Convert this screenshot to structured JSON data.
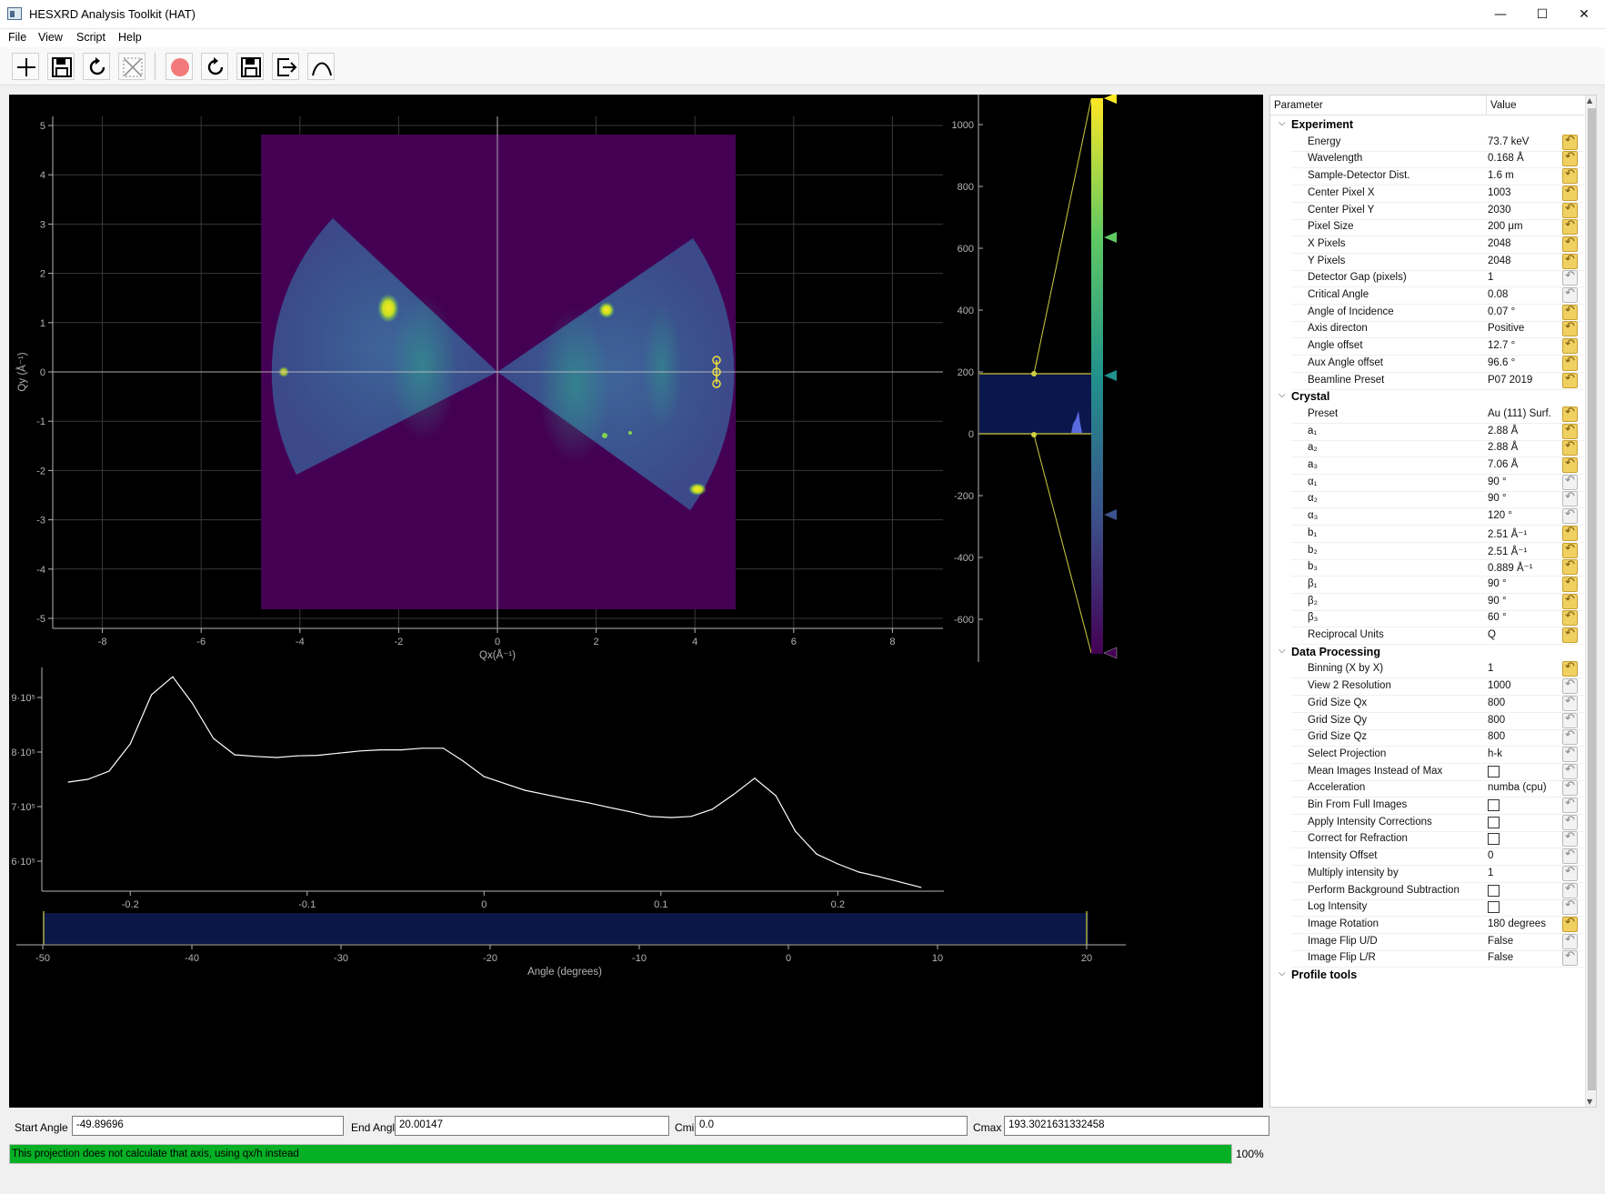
{
  "window": {
    "title": "HESXRD Analysis Toolkit (HAT)"
  },
  "menu": [
    {
      "label": "File"
    },
    {
      "label": "View"
    },
    {
      "label": "Script"
    },
    {
      "label": "Help"
    }
  ],
  "toolbar": {
    "left": [
      "add-icon",
      "save-icon",
      "refresh-icon",
      "close-icon"
    ],
    "right": [
      "record-icon",
      "refresh-icon",
      "save-icon",
      "export-icon",
      "curve-icon"
    ]
  },
  "colors": {
    "colormap": [
      "#440154",
      "#3b528b",
      "#21918c",
      "#5ec962",
      "#fde725"
    ],
    "progress": "#06b025",
    "background_region": "#440154"
  },
  "map_plot": {
    "x_label": "Qx(Å⁻¹)",
    "y_label": "Qy (Å⁻¹)",
    "x_ticks": [
      "-8",
      "-6",
      "-4",
      "-2",
      "0",
      "2",
      "4",
      "6",
      "8"
    ],
    "y_ticks": [
      "5",
      "4",
      "3",
      "2",
      "1",
      "0",
      "-1",
      "-2",
      "-3",
      "-4",
      "-5"
    ]
  },
  "histogram": {
    "ticks": [
      "1000",
      "800",
      "600",
      "400",
      "200",
      "0",
      "-200",
      "-400",
      "-600"
    ]
  },
  "profile_plot": {
    "x_ticks": [
      "-0.2",
      "-0.1",
      "0",
      "0.1",
      "0.2"
    ],
    "y_ticks": [
      "9·10⁵",
      "8·10⁵",
      "7·10⁵",
      "6·10⁵"
    ],
    "chart_data": {
      "type": "line",
      "xlim": [
        -0.25,
        0.26
      ],
      "ylim": [
        5.45,
        9.55
      ],
      "ylabel_scale": "10^5",
      "x": [
        -0.235,
        -0.224,
        -0.212,
        -0.2,
        -0.188,
        -0.176,
        -0.165,
        -0.153,
        -0.141,
        -0.129,
        -0.117,
        -0.106,
        -0.094,
        -0.082,
        -0.07,
        -0.059,
        -0.047,
        -0.035,
        -0.023,
        -0.012,
        0.0,
        0.012,
        0.023,
        0.035,
        0.047,
        0.059,
        0.07,
        0.082,
        0.094,
        0.106,
        0.117,
        0.129,
        0.141,
        0.153,
        0.165,
        0.176,
        0.188,
        0.2,
        0.212,
        0.223,
        0.235,
        0.247
      ],
      "y": [
        7.45,
        7.5,
        7.65,
        8.15,
        9.05,
        9.38,
        8.9,
        8.25,
        7.95,
        7.92,
        7.9,
        7.93,
        7.94,
        7.98,
        8.02,
        8.04,
        8.04,
        8.07,
        8.07,
        7.84,
        7.55,
        7.42,
        7.3,
        7.22,
        7.14,
        7.07,
        6.99,
        6.91,
        6.82,
        6.8,
        6.82,
        6.95,
        7.22,
        7.52,
        7.2,
        6.55,
        6.13,
        5.95,
        5.8,
        5.72,
        5.62,
        5.52
      ]
    }
  },
  "angle_bar": {
    "label": "Angle (degrees)",
    "ticks": [
      "-50",
      "-40",
      "-30",
      "-20",
      "-10",
      "0",
      "10",
      "20"
    ]
  },
  "tree": {
    "header_param": "Parameter",
    "header_value": "Value",
    "rows": [
      {
        "type": "group",
        "label": "Experiment"
      },
      {
        "type": "param",
        "name": "Energy",
        "value": "73.7 keV",
        "reset": true
      },
      {
        "type": "param",
        "name": "Wavelength",
        "value": "0.168 Å",
        "reset": true
      },
      {
        "type": "param",
        "name": "Sample-Detector Dist.",
        "value": "1.6 m",
        "reset": true
      },
      {
        "type": "param",
        "name": "Center Pixel X",
        "value": "1003",
        "reset": true
      },
      {
        "type": "param",
        "name": "Center Pixel Y",
        "value": "2030",
        "reset": true
      },
      {
        "type": "param",
        "name": "Pixel Size",
        "value": "200 μm",
        "reset": true
      },
      {
        "type": "param",
        "name": "X Pixels",
        "value": "2048",
        "reset": true
      },
      {
        "type": "param",
        "name": "Y Pixels",
        "value": "2048",
        "reset": true
      },
      {
        "type": "param",
        "name": "Detector Gap (pixels)",
        "value": "1",
        "reset": false
      },
      {
        "type": "param",
        "name": "Critical Angle",
        "value": "0.08",
        "reset": false
      },
      {
        "type": "param",
        "name": "Angle of Incidence",
        "value": "0.07 °",
        "reset": true
      },
      {
        "type": "param",
        "name": "Axis directon",
        "value": "Positive",
        "reset": true
      },
      {
        "type": "param",
        "name": "Angle offset",
        "value": "12.7 °",
        "reset": true
      },
      {
        "type": "param",
        "name": "Aux Angle offset",
        "value": "96.6 °",
        "reset": true
      },
      {
        "type": "param",
        "name": "Beamline Preset",
        "value": "P07 2019",
        "reset": true
      },
      {
        "type": "group",
        "label": "Crystal"
      },
      {
        "type": "param",
        "name": "Preset",
        "value": "Au (111) Surf.",
        "reset": true
      },
      {
        "type": "param",
        "name": "a₁",
        "value": "2.88 Å",
        "reset": true
      },
      {
        "type": "param",
        "name": "a₂",
        "value": "2.88 Å",
        "reset": true
      },
      {
        "type": "param",
        "name": "a₃",
        "value": "7.06 Å",
        "reset": true
      },
      {
        "type": "param",
        "name": "α₁",
        "value": "90 °",
        "reset": false
      },
      {
        "type": "param",
        "name": "α₂",
        "value": "90 °",
        "reset": false
      },
      {
        "type": "param",
        "name": "α₃",
        "value": "120 °",
        "reset": false
      },
      {
        "type": "param",
        "name": "b₁",
        "value": "2.51 Å⁻¹",
        "reset": true
      },
      {
        "type": "param",
        "name": "b₂",
        "value": "2.51 Å⁻¹",
        "reset": true
      },
      {
        "type": "param",
        "name": "b₃",
        "value": "0.889 Å⁻¹",
        "reset": true
      },
      {
        "type": "param",
        "name": "β₁",
        "value": "90 °",
        "reset": true
      },
      {
        "type": "param",
        "name": "β₂",
        "value": "90 °",
        "reset": true
      },
      {
        "type": "param",
        "name": "β₃",
        "value": "60 °",
        "reset": true
      },
      {
        "type": "param",
        "name": "Reciprocal Units",
        "value": "Q",
        "reset": true
      },
      {
        "type": "group",
        "label": "Data Processing"
      },
      {
        "type": "param",
        "name": "Binning (X by X)",
        "value": "1",
        "reset": true
      },
      {
        "type": "param",
        "name": "View 2 Resolution",
        "value": "1000",
        "reset": false
      },
      {
        "type": "param",
        "name": "Grid Size Qx",
        "value": "800",
        "reset": false
      },
      {
        "type": "param",
        "name": "Grid Size Qy",
        "value": "800",
        "reset": false
      },
      {
        "type": "param",
        "name": "Grid Size Qz",
        "value": "800",
        "reset": false
      },
      {
        "type": "param",
        "name": "Select Projection",
        "value": "h-k",
        "reset": false
      },
      {
        "type": "param",
        "name": "Mean Images Instead of Max",
        "check": true,
        "reset": false
      },
      {
        "type": "param",
        "name": "Acceleration",
        "value": "numba (cpu)",
        "reset": false
      },
      {
        "type": "param",
        "name": "Bin From Full Images",
        "check": true,
        "reset": false
      },
      {
        "type": "param",
        "name": "Apply Intensity Corrections",
        "check": true,
        "reset": false
      },
      {
        "type": "param",
        "name": "Correct for Refraction",
        "check": true,
        "reset": false
      },
      {
        "type": "param",
        "name": "Intensity Offset",
        "value": "0",
        "reset": false
      },
      {
        "type": "param",
        "name": "Multiply intensity by",
        "value": "1",
        "reset": false
      },
      {
        "type": "param",
        "name": "Perform Background Subtraction",
        "check": true,
        "reset": false
      },
      {
        "type": "param",
        "name": "Log Intensity",
        "check": true,
        "reset": false
      },
      {
        "type": "param",
        "name": "Image Rotation",
        "value": "180 degrees",
        "reset": true
      },
      {
        "type": "param",
        "name": "Image Flip U/D",
        "value": "False",
        "reset": false
      },
      {
        "type": "param",
        "name": "Image Flip L/R",
        "value": "False",
        "reset": false
      },
      {
        "type": "group",
        "label": "Profile tools"
      }
    ]
  },
  "bottom": {
    "start_angle_label": "Start Angle",
    "start_angle": "-49.89696",
    "end_angle_label": "End Angle",
    "end_angle": "20.00147",
    "cmin_label": "Cmin",
    "cmin": "0.0",
    "cmax_label": "Cmax",
    "cmax": "193.3021631332458"
  },
  "status": {
    "message": "This projection does not calculate that axis, using qx/h instead",
    "percent_text": "100%",
    "progress": 1.0
  }
}
